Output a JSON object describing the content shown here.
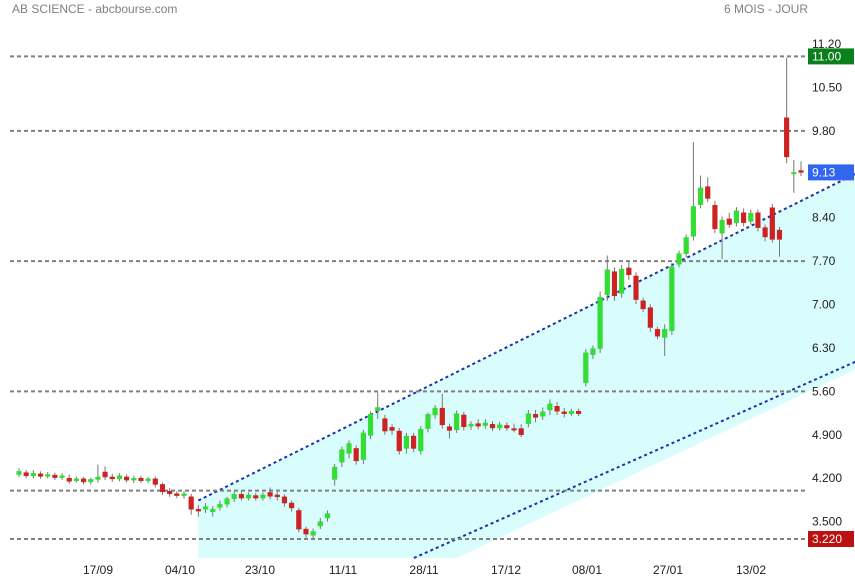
{
  "header": {
    "left": "AB SCIENCE - abcbourse.com",
    "right": "6 MOIS - JOUR"
  },
  "colors": {
    "up": "#33dd33",
    "down": "#cc2222",
    "channel_fill": "#d9fcfc",
    "channel_line": "#1a33aa",
    "level_line": "#808080",
    "badge_high": "#0a7f1a",
    "badge_last": "#3366ee",
    "badge_low": "#bb1111"
  },
  "chart_data": {
    "type": "candlestick",
    "xlabels": [
      "17/09",
      "04/10",
      "23/10",
      "11/11",
      "28/11",
      "17/12",
      "08/01",
      "27/01",
      "13/02"
    ],
    "ytick_labels": [
      "11.20",
      "10.50",
      "9.80",
      "9.13",
      "8.40",
      "7.70",
      "7.00",
      "6.30",
      "5.60",
      "4.900",
      "4.200",
      "3.500"
    ],
    "ylim": [
      3.2,
      11.3
    ],
    "levels": [
      11.0,
      9.8,
      7.7,
      5.6,
      4.0,
      3.22
    ],
    "badges": [
      {
        "label": "11.00",
        "value": 11.0,
        "role": "high"
      },
      {
        "label": "9.13",
        "value": 9.13,
        "role": "last"
      },
      {
        "label": "3.220",
        "value": 3.22,
        "role": "low"
      }
    ],
    "channel": {
      "upper": [
        [
          25,
          3.84
        ],
        [
          153,
          11.2
        ]
      ],
      "lower": [
        [
          61,
          3.22
        ],
        [
          153,
          7.95
        ]
      ]
    },
    "candles": [
      [
        0,
        4.26,
        4.31,
        4.36,
        4.22
      ],
      [
        1,
        4.29,
        4.24,
        4.33,
        4.2
      ],
      [
        2,
        4.24,
        4.28,
        4.33,
        4.2
      ],
      [
        3,
        4.27,
        4.23,
        4.31,
        4.19
      ],
      [
        4,
        4.23,
        4.26,
        4.3,
        4.2
      ],
      [
        5,
        4.25,
        4.21,
        4.29,
        4.17
      ],
      [
        6,
        4.21,
        4.24,
        4.28,
        4.17
      ],
      [
        7,
        4.2,
        4.15,
        4.26,
        4.11
      ],
      [
        8,
        4.16,
        4.19,
        4.23,
        4.13
      ],
      [
        9,
        4.19,
        4.14,
        4.22,
        4.1
      ],
      [
        10,
        4.14,
        4.18,
        4.21,
        4.1
      ],
      [
        11,
        4.18,
        4.22,
        4.42,
        4.13
      ],
      [
        12,
        4.3,
        4.22,
        4.39,
        4.17
      ],
      [
        13,
        4.22,
        4.19,
        4.27,
        4.14
      ],
      [
        14,
        4.19,
        4.24,
        4.28,
        4.15
      ],
      [
        15,
        4.22,
        4.17,
        4.26,
        4.13
      ],
      [
        16,
        4.17,
        4.2,
        4.24,
        4.12
      ],
      [
        17,
        4.2,
        4.16,
        4.24,
        4.12
      ],
      [
        18,
        4.16,
        4.19,
        4.22,
        4.12
      ],
      [
        19,
        4.19,
        4.1,
        4.23,
        4.05
      ],
      [
        20,
        4.1,
        3.98,
        4.13,
        3.93
      ],
      [
        21,
        3.99,
        3.95,
        4.04,
        3.9
      ],
      [
        22,
        3.95,
        3.92,
        3.99,
        3.88
      ],
      [
        23,
        3.92,
        3.95,
        3.99,
        3.87
      ],
      [
        24,
        3.9,
        3.7,
        3.95,
        3.61
      ],
      [
        25,
        3.7,
        3.67,
        3.77,
        3.58
      ],
      [
        26,
        3.7,
        3.74,
        3.8,
        3.64
      ],
      [
        27,
        3.66,
        3.7,
        3.75,
        3.58
      ],
      [
        28,
        3.73,
        3.78,
        3.84,
        3.68
      ],
      [
        29,
        3.78,
        3.87,
        3.9,
        3.73
      ],
      [
        30,
        3.87,
        3.94,
        3.99,
        3.82
      ],
      [
        31,
        3.94,
        3.88,
        3.99,
        3.84
      ],
      [
        32,
        3.88,
        3.93,
        3.97,
        3.84
      ],
      [
        33,
        3.92,
        3.88,
        3.96,
        3.84
      ],
      [
        34,
        3.88,
        3.93,
        3.97,
        3.84
      ],
      [
        35,
        3.97,
        3.91,
        4.05,
        3.86
      ],
      [
        36,
        3.93,
        3.9,
        3.98,
        3.84
      ],
      [
        37,
        3.9,
        3.8,
        3.94,
        3.74
      ],
      [
        38,
        3.8,
        3.72,
        3.84,
        3.66
      ],
      [
        39,
        3.68,
        3.38,
        3.72,
        3.33
      ],
      [
        40,
        3.38,
        3.3,
        3.42,
        3.24
      ],
      [
        41,
        3.28,
        3.34,
        3.39,
        3.23
      ],
      [
        42,
        3.43,
        3.5,
        3.56,
        3.38
      ],
      [
        43,
        3.56,
        3.63,
        3.68,
        3.5
      ],
      [
        44,
        4.18,
        4.38,
        4.43,
        4.08
      ],
      [
        45,
        4.46,
        4.66,
        4.71,
        4.38
      ],
      [
        46,
        4.6,
        4.76,
        4.81,
        4.52
      ],
      [
        47,
        4.68,
        4.48,
        4.73,
        4.42
      ],
      [
        48,
        4.5,
        4.93,
        4.98,
        4.43
      ],
      [
        49,
        4.89,
        5.23,
        5.28,
        4.83
      ],
      [
        50,
        5.29,
        5.34,
        5.58,
        5.16
      ],
      [
        51,
        5.16,
        4.96,
        5.22,
        4.9
      ],
      [
        52,
        5.02,
        4.97,
        5.07,
        4.9
      ],
      [
        53,
        4.96,
        4.64,
        5.01,
        4.58
      ],
      [
        54,
        4.68,
        4.88,
        4.93,
        4.6
      ],
      [
        55,
        4.88,
        4.68,
        4.93,
        4.62
      ],
      [
        56,
        4.64,
        4.99,
        5.04,
        4.58
      ],
      [
        57,
        5.0,
        5.23,
        5.26,
        4.94
      ],
      [
        58,
        5.22,
        5.33,
        5.38,
        5.16
      ],
      [
        59,
        5.33,
        5.06,
        5.56,
        5.0
      ],
      [
        60,
        5.03,
        4.97,
        5.08,
        4.84
      ],
      [
        61,
        4.98,
        5.24,
        5.29,
        4.93
      ],
      [
        62,
        5.22,
        5.03,
        5.27,
        4.97
      ],
      [
        63,
        5.04,
        5.07,
        5.12,
        4.98
      ],
      [
        64,
        5.08,
        5.04,
        5.15,
        4.99
      ],
      [
        65,
        5.05,
        5.09,
        5.15,
        5.0
      ],
      [
        66,
        5.07,
        5.01,
        5.12,
        4.96
      ],
      [
        67,
        5.01,
        5.06,
        5.11,
        4.97
      ],
      [
        68,
        5.05,
        5.01,
        5.1,
        4.96
      ],
      [
        69,
        5.0,
        4.99,
        5.08,
        4.94
      ],
      [
        70,
        5.0,
        4.9,
        5.07,
        4.86
      ],
      [
        71,
        5.08,
        5.24,
        5.3,
        5.02
      ],
      [
        72,
        5.23,
        5.18,
        5.3,
        5.1
      ],
      [
        73,
        5.2,
        5.27,
        5.34,
        5.14
      ],
      [
        74,
        5.3,
        5.4,
        5.47,
        5.22
      ],
      [
        75,
        5.36,
        5.28,
        5.43,
        5.22
      ],
      [
        76,
        5.27,
        5.24,
        5.33,
        5.18
      ],
      [
        77,
        5.24,
        5.28,
        5.32,
        5.2
      ],
      [
        78,
        5.28,
        5.24,
        5.32,
        5.2
      ],
      [
        79,
        5.74,
        6.22,
        6.28,
        5.68
      ],
      [
        80,
        6.19,
        6.29,
        6.34,
        6.12
      ],
      [
        81,
        6.29,
        7.12,
        7.21,
        6.22
      ],
      [
        82,
        7.16,
        7.56,
        7.79,
        7.06
      ],
      [
        83,
        7.53,
        7.14,
        7.6,
        7.06
      ],
      [
        84,
        7.18,
        7.57,
        7.64,
        7.11
      ],
      [
        85,
        7.59,
        7.48,
        7.69,
        7.4
      ],
      [
        86,
        7.46,
        7.08,
        7.52,
        7.01
      ],
      [
        87,
        7.06,
        6.93,
        7.11,
        6.88
      ],
      [
        88,
        6.95,
        6.63,
        7.0,
        6.56
      ],
      [
        89,
        6.6,
        6.49,
        6.64,
        6.44
      ],
      [
        90,
        6.47,
        6.6,
        6.68,
        6.17
      ],
      [
        91,
        6.58,
        7.61,
        7.67,
        6.51
      ],
      [
        92,
        7.65,
        7.82,
        7.87,
        7.6
      ],
      [
        93,
        7.82,
        8.08,
        8.13,
        7.76
      ],
      [
        94,
        8.1,
        8.58,
        9.62,
        8.03
      ],
      [
        95,
        8.61,
        8.88,
        9.08,
        8.55
      ],
      [
        96,
        8.9,
        8.71,
        9.05,
        8.65
      ],
      [
        97,
        8.6,
        8.22,
        8.67,
        8.15
      ],
      [
        98,
        8.15,
        8.36,
        8.42,
        7.73
      ],
      [
        99,
        8.38,
        8.29,
        8.48,
        8.24
      ],
      [
        100,
        8.32,
        8.51,
        8.57,
        8.26
      ],
      [
        101,
        8.48,
        8.32,
        8.55,
        8.26
      ],
      [
        102,
        8.34,
        8.47,
        8.53,
        8.29
      ],
      [
        103,
        8.48,
        8.24,
        8.53,
        8.18
      ],
      [
        104,
        8.24,
        8.09,
        8.29,
        8.02
      ],
      [
        105,
        8.56,
        8.05,
        8.62,
        8.0
      ],
      [
        106,
        8.2,
        8.05,
        8.25,
        7.77
      ],
      [
        107,
        10.01,
        9.38,
        10.98,
        9.28
      ],
      [
        108,
        9.13,
        9.13,
        9.33,
        8.8
      ],
      [
        109,
        9.16,
        9.13,
        9.31,
        9.07
      ]
    ]
  }
}
